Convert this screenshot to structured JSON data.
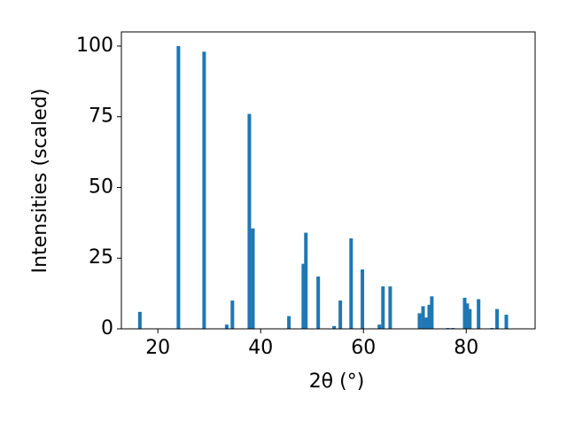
{
  "chart_data": {
    "type": "bar",
    "x_label": "2θ (°)",
    "y_label": "Intensities (scaled)",
    "x": [
      16.5,
      24.0,
      29.0,
      33.4,
      34.5,
      37.8,
      38.5,
      45.5,
      48.3,
      48.8,
      51.2,
      54.3,
      55.5,
      57.6,
      59.8,
      63.1,
      63.8,
      65.2,
      70.9,
      71.6,
      72.2,
      72.8,
      73.3,
      76.4,
      77.4,
      79.7,
      80.2,
      80.7,
      82.4,
      85.0,
      86.0,
      87.8
    ],
    "values": [
      6,
      100,
      98,
      1.5,
      10,
      76,
      35.5,
      4.5,
      23,
      34,
      18.5,
      1,
      10,
      32,
      21,
      1.5,
      15,
      15,
      5.5,
      8,
      4,
      8.5,
      11.5,
      0.3,
      0.3,
      11,
      9,
      7,
      10.5,
      0.3,
      7,
      5
    ],
    "color": "#1f77b4",
    "xlim": [
      12.9,
      93.4
    ],
    "xticks": [
      20,
      40,
      60,
      80
    ],
    "ylim": [
      0,
      105
    ],
    "yticks": [
      0,
      25,
      50,
      75,
      100
    ]
  }
}
